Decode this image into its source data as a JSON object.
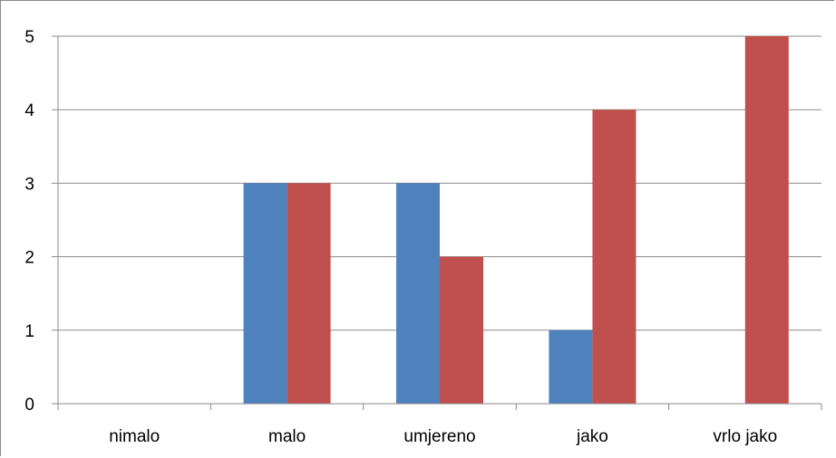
{
  "chart_data": {
    "type": "bar",
    "title": "",
    "xlabel": "",
    "ylabel": "",
    "categories": [
      "nimalo",
      "malo",
      "umjereno",
      "jako",
      "vrlo jako"
    ],
    "series": [
      {
        "values": [
          0,
          3,
          3,
          1,
          0
        ],
        "color": "#4F81BD"
      },
      {
        "values": [
          0,
          3,
          2,
          4,
          5
        ],
        "color": "#C0504D"
      }
    ],
    "ylim": [
      0,
      5
    ],
    "yticks": [
      "0",
      "1",
      "2",
      "3",
      "4",
      "5"
    ],
    "grid": true,
    "legend": "none"
  }
}
